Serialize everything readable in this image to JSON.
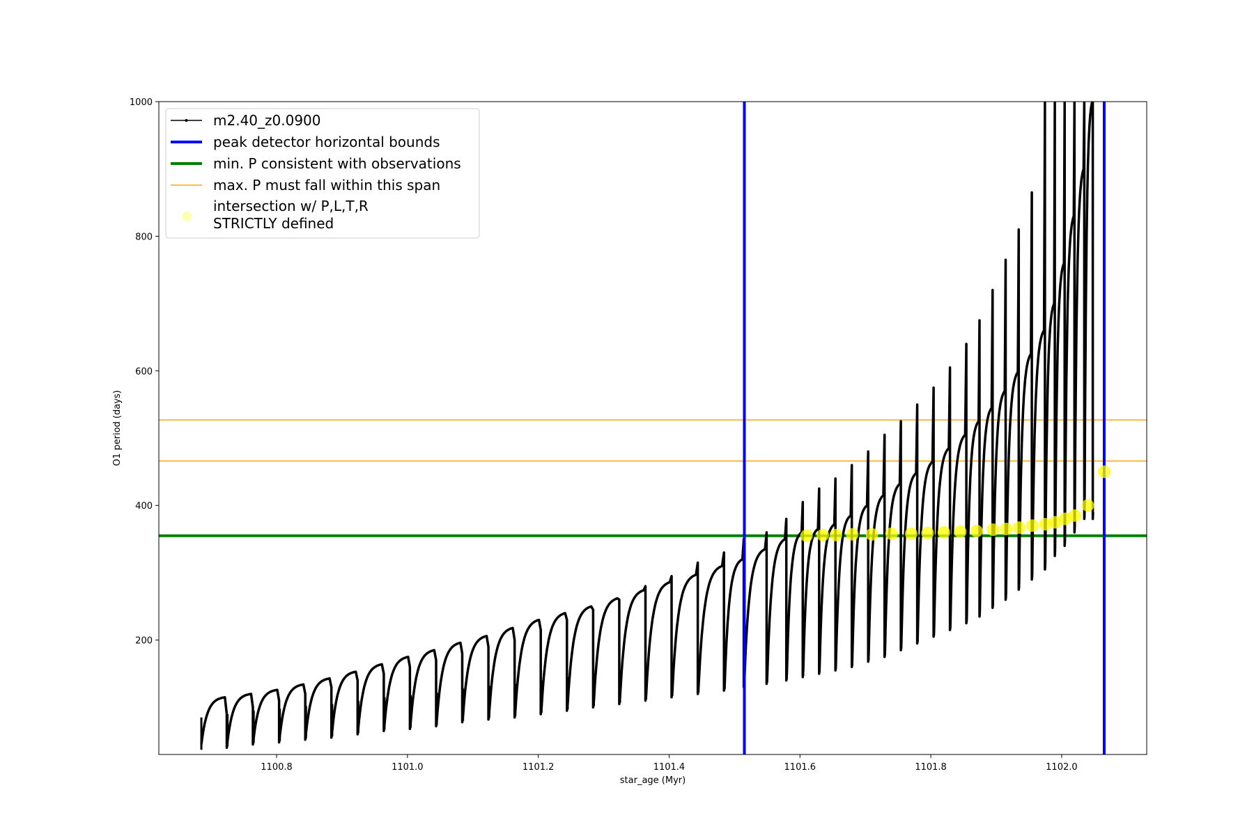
{
  "chart_data": {
    "type": "line",
    "xlabel": "star_age (Myr)",
    "ylabel": "O1 period (days)",
    "xlim": [
      1100.62,
      1102.13
    ],
    "ylim": [
      30,
      1000
    ],
    "xticks": [
      1100.8,
      1101.0,
      1101.2,
      1101.4,
      1101.6,
      1101.8,
      1102.0
    ],
    "xtick_labels": [
      "1100.8",
      "1101.0",
      "1101.2",
      "1101.4",
      "1101.6",
      "1101.8",
      "1102.0"
    ],
    "yticks": [
      200,
      400,
      600,
      800,
      1000
    ],
    "ytick_labels": [
      "200",
      "400",
      "600",
      "800",
      "1000"
    ],
    "grid": false,
    "legend_position": "upper-left",
    "series": [
      {
        "name": "m2.40_z0.0900",
        "color": "#000000",
        "style": "line-with-dots",
        "description": "sawtooth thermal-pulse cycles",
        "cycle_starts": [
          1100.685,
          1100.725,
          1100.765,
          1100.805,
          1100.845,
          1100.885,
          1100.925,
          1100.965,
          1101.005,
          1101.045,
          1101.085,
          1101.125,
          1101.165,
          1101.205,
          1101.245,
          1101.285,
          1101.325,
          1101.365,
          1101.405,
          1101.445,
          1101.485,
          1101.515,
          1101.55,
          1101.58,
          1101.605,
          1101.63,
          1101.655,
          1101.68,
          1101.705,
          1101.73,
          1101.755,
          1101.78,
          1101.805,
          1101.83,
          1101.855,
          1101.875,
          1101.895,
          1101.915,
          1101.935,
          1101.955,
          1101.975,
          1101.99,
          1102.005,
          1102.02,
          1102.035
        ],
        "cycle_start_values": [
          45,
          50,
          55,
          58,
          62,
          65,
          70,
          75,
          78,
          82,
          88,
          92,
          95,
          100,
          105,
          110,
          115,
          120,
          125,
          130,
          135,
          140,
          145,
          150,
          155,
          160,
          165,
          170,
          178,
          185,
          195,
          205,
          215,
          225,
          235,
          245,
          258,
          270,
          285,
          300,
          315,
          335,
          350,
          370,
          390
        ],
        "cycle_peaks": [
          115,
          120,
          126,
          134,
          143,
          153,
          164,
          175,
          185,
          196,
          206,
          218,
          230,
          240,
          250,
          262,
          274,
          286,
          297,
          310,
          320,
          335,
          350,
          360,
          365,
          372,
          385,
          400,
          415,
          432,
          448,
          465,
          485,
          505,
          525,
          545,
          570,
          598,
          625,
          660,
          700,
          760,
          830,
          900,
          1000
        ],
        "spike_peaks": [
          90,
          100,
          110,
          120,
          130,
          140,
          150,
          160,
          170,
          180,
          190,
          200,
          215,
          230,
          245,
          260,
          280,
          295,
          315,
          330,
          350,
          360,
          380,
          405,
          425,
          440,
          460,
          480,
          505,
          525,
          550,
          575,
          605,
          640,
          675,
          720,
          765,
          810,
          865,
          1000,
          1000,
          1000,
          1000,
          1000,
          1000
        ]
      },
      {
        "name": "peak detector horizontal bounds",
        "color": "#0000ff",
        "style": "vertical-lines",
        "x": [
          1101.515,
          1102.065
        ]
      },
      {
        "name": "min. P consistent with observations",
        "color": "#008000",
        "style": "horizontal-line",
        "y": 355
      },
      {
        "name": "max. P must fall within this span",
        "color": "#ffa500",
        "style": "horizontal-lines",
        "y": [
          466,
          527
        ]
      },
      {
        "name": "intersection w/ P,L,T,R\nSTRICTLY defined",
        "legend_lines": [
          "intersection w/ P,L,T,R",
          "STRICTLY defined"
        ],
        "color": "#ffff00",
        "style": "markers",
        "x": [
          1101.61,
          1101.635,
          1101.655,
          1101.68,
          1101.71,
          1101.74,
          1101.77,
          1101.795,
          1101.82,
          1101.845,
          1101.87,
          1101.895,
          1101.915,
          1101.935,
          1101.955,
          1101.975,
          1101.99,
          1102.005,
          1102.02,
          1102.04,
          1102.065
        ],
        "y": [
          355,
          356,
          356,
          357,
          357,
          358,
          358,
          359,
          360,
          361,
          362,
          364,
          365,
          367,
          370,
          372,
          375,
          380,
          385,
          400,
          450
        ]
      }
    ]
  }
}
